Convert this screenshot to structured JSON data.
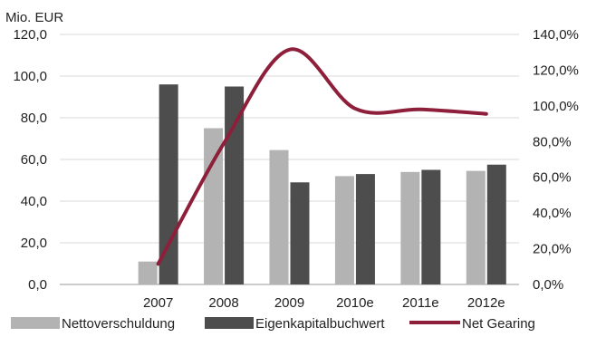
{
  "chart_data": {
    "type": "bar",
    "title": "",
    "y_axis_label": "Mio. EUR",
    "categories": [
      "",
      "2007",
      "2008",
      "2009",
      "2010e",
      "2011e",
      "2012e"
    ],
    "y_left": {
      "min": 0,
      "max": 120,
      "step": 20,
      "tick_labels": [
        "0,0",
        "20,0",
        "40,0",
        "60,0",
        "80,0",
        "100,0",
        "120,0"
      ]
    },
    "y_right": {
      "min": 0,
      "max": 140,
      "step": 20,
      "tick_labels": [
        "0,0%",
        "20,0%",
        "40,0%",
        "60,0%",
        "80,0%",
        "100,0%",
        "120,0%",
        "140,0%"
      ]
    },
    "grid": true,
    "legend_position": "bottom",
    "series": [
      {
        "name": "Nettoverschuldung",
        "type": "bar",
        "axis": "left",
        "color": "#b3b3b3",
        "values": [
          null,
          11.0,
          75.0,
          64.5,
          52.0,
          54.0,
          54.5
        ]
      },
      {
        "name": "Eigenkapitalbuchwert",
        "type": "bar",
        "axis": "left",
        "color": "#4d4d4d",
        "values": [
          null,
          96.0,
          95.0,
          49.0,
          53.0,
          55.0,
          57.5
        ]
      },
      {
        "name": "Net Gearing",
        "type": "line",
        "axis": "right",
        "color": "#8e1f3b",
        "values": [
          null,
          11.5,
          79.0,
          131.5,
          98.5,
          98.0,
          95.5
        ]
      }
    ]
  }
}
